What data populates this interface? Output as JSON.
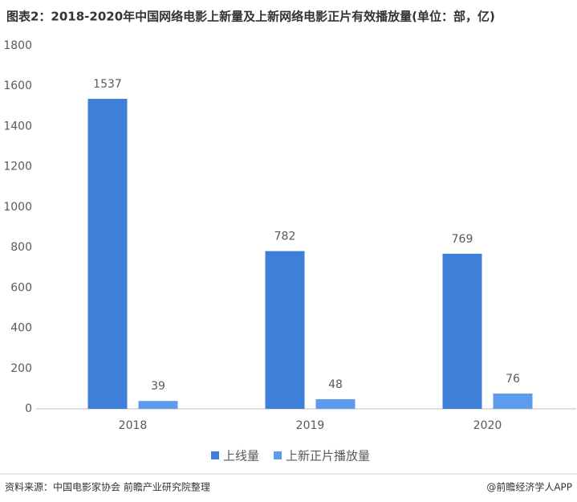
{
  "chart_data": {
    "type": "bar",
    "title": "图表2：2018-2020年中国网络电影上新量及上新网络电影正片有效播放量(单位：部，亿)",
    "categories": [
      "2018",
      "2019",
      "2020"
    ],
    "series": [
      {
        "name": "上线量",
        "color": "#3d7fd9",
        "values": [
          1537,
          782,
          769
        ]
      },
      {
        "name": "上新正片播放量",
        "color": "#5d9cec",
        "values": [
          39,
          48,
          76
        ]
      }
    ],
    "ylim": [
      0,
      1800
    ],
    "yticks": [
      0,
      200,
      400,
      600,
      800,
      1000,
      1200,
      1400,
      1600,
      1800
    ],
    "grid": false,
    "legend": "bottom"
  },
  "footer": {
    "source": "资料来源：中国电影家协会 前瞻产业研究院整理",
    "credit": "@前瞻经济学人APP"
  }
}
